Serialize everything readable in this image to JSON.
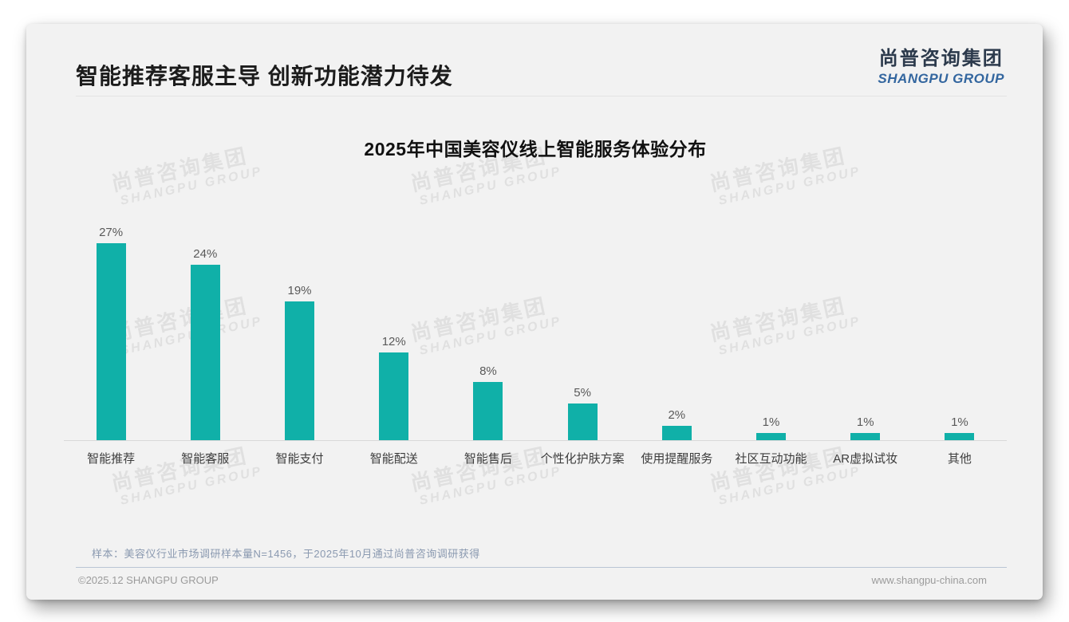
{
  "header": {
    "title": "智能推荐客服主导 创新功能潜力待发",
    "logo": {
      "cn": "尚普咨询集团",
      "en": "SHANGPU GROUP"
    }
  },
  "chart_data": {
    "type": "bar",
    "title": "2025年中国美容仪线上智能服务体验分布",
    "categories": [
      "智能推荐",
      "智能客服",
      "智能支付",
      "智能配送",
      "智能售后",
      "个性化护肤方案",
      "使用提醒服务",
      "社区互动功能",
      "AR虚拟试妆",
      "其他"
    ],
    "values": [
      27,
      24,
      19,
      12,
      8,
      5,
      2,
      1,
      1,
      1
    ],
    "value_labels": [
      "27%",
      "24%",
      "19%",
      "12%",
      "8%",
      "5%",
      "2%",
      "1%",
      "1%",
      "1%"
    ],
    "unit": "%",
    "xlabel": "",
    "ylabel": "",
    "ylim": [
      0,
      30
    ],
    "grid": false,
    "legend": null,
    "bar_color": "#10b0a8"
  },
  "watermark": {
    "line1": "尚普咨询集团",
    "line2": "SHANGPU GROUP"
  },
  "footnote": "样本：美容仪行业市场调研样本量N=1456，于2025年10月通过尚普咨询调研获得",
  "footer": {
    "left": "©2025.12 SHANGPU GROUP",
    "right": "www.shangpu-china.com"
  },
  "colors": {
    "bar": "#10b0a8",
    "logo_cn": "#2c3a4c",
    "logo_en": "#33669f",
    "card_bg": "#f2f2f2"
  }
}
